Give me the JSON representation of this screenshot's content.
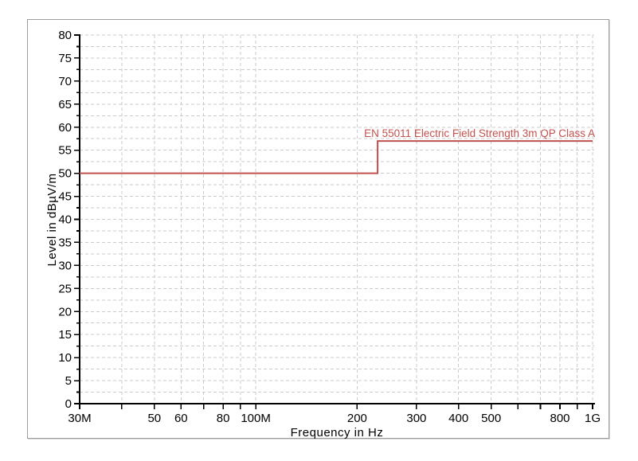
{
  "window": {
    "background_color": "#ffffff",
    "panel_border_color": "#9d9d9d"
  },
  "chart_data": {
    "type": "line",
    "title": "",
    "xlabel": "Frequency in Hz",
    "ylabel": "Level in dBµV/m",
    "x_scale": "log",
    "x_unit": "MHz",
    "xlim": [
      30,
      1000
    ],
    "ylim": [
      0,
      80
    ],
    "x_ticks_mhz": [
      30,
      40,
      50,
      60,
      70,
      80,
      90,
      100,
      200,
      300,
      400,
      500,
      600,
      700,
      800,
      900,
      1000
    ],
    "x_tick_labels": {
      "30": "30M",
      "50": "50",
      "60": "60",
      "80": "80",
      "100": "100M",
      "200": "200",
      "300": "300",
      "400": "400",
      "500": "500",
      "800": "800",
      "1000": "1G"
    },
    "y_major_step": 5,
    "y_minor_step": 2.5,
    "y_tick_labels": [
      "0",
      "5",
      "10",
      "15",
      "20",
      "25",
      "30",
      "35",
      "40",
      "45",
      "50",
      "55",
      "60",
      "65",
      "70",
      "75",
      "80"
    ],
    "grid": {
      "show": true,
      "color": "#cbcbcb",
      "dash": [
        4,
        3
      ]
    },
    "axis_color": "#000000",
    "text_color": "#000000",
    "legend_position": "inline-annotation",
    "series": [
      {
        "name": "EN 55011 Electric Field Strength 3m QP Class A",
        "color": "#c0504d",
        "line_width": 2,
        "points_mhz_db": [
          [
            30,
            50
          ],
          [
            230,
            50
          ],
          [
            230,
            57
          ],
          [
            1000,
            57
          ]
        ]
      }
    ],
    "annotations": [
      {
        "text": "EN 55011 Electric Field Strength 3m QP Class A",
        "x_mhz": 1000,
        "y_db": 57,
        "anchor": "end",
        "color": "#c4524f"
      }
    ]
  }
}
